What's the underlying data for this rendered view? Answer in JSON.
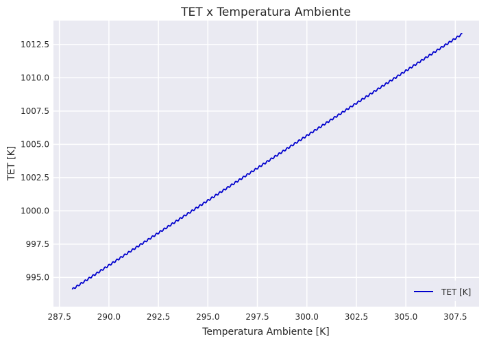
{
  "chart_data": {
    "type": "line",
    "title": "TET x Temperatura Ambiente",
    "xlabel": "Temperatura Ambiente [K]",
    "ylabel": "TET [K]",
    "xlim": [
      287.2,
      308.7
    ],
    "ylim": [
      992.8,
      1014.3
    ],
    "xticks": [
      "287.5",
      "290.0",
      "292.5",
      "295.0",
      "297.5",
      "300.0",
      "302.5",
      "305.0",
      "307.5"
    ],
    "yticks": [
      "995.0",
      "997.5",
      "1000.0",
      "1002.5",
      "1005.0",
      "1007.5",
      "1010.0",
      "1012.5"
    ],
    "grid": true,
    "legend_position": "lower-right",
    "series": [
      {
        "name": "TET [K]",
        "color": "#0000cc",
        "x": [
          288.15,
          307.85
        ],
        "y": [
          994.1,
          1013.3
        ],
        "wave_period": 0.2,
        "wave_amplitude": 0.07
      }
    ]
  }
}
